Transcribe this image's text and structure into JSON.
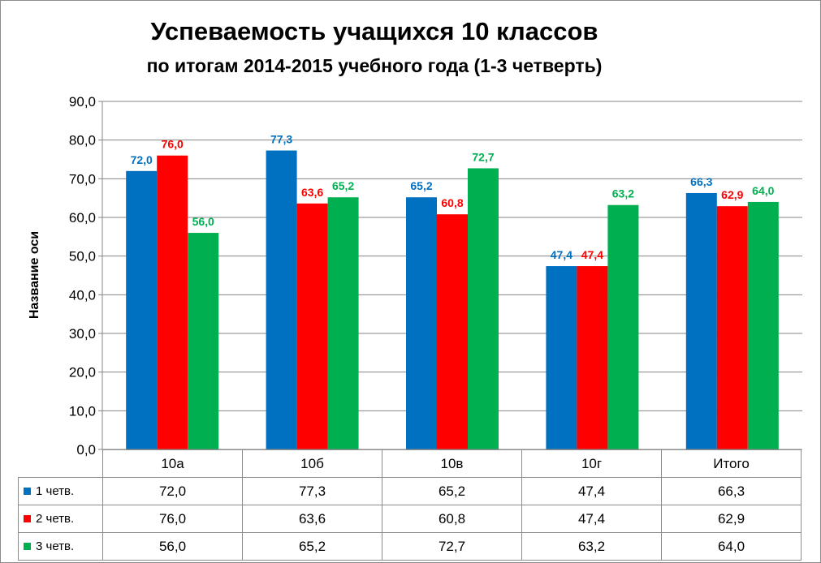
{
  "chart_data": {
    "type": "bar",
    "title": "Успеваемость учащихся 10 классов",
    "subtitle": "по итогам 2014-2015 учебного года (1-3 четверть)",
    "ylabel": "Название оси",
    "ylim": [
      0,
      90
    ],
    "yticks": [
      "0,0",
      "10,0",
      "20,0",
      "30,0",
      "40,0",
      "50,0",
      "60,0",
      "70,0",
      "80,0",
      "90,0"
    ],
    "grid": true,
    "legend": "data-table-below",
    "categories": [
      "10а",
      "10б",
      "10в",
      "10г",
      "Итого"
    ],
    "series": [
      {
        "name": "1 четв.",
        "color": "#0070C0",
        "values": [
          72.0,
          77.3,
          65.2,
          47.4,
          66.3
        ],
        "labels": [
          "72,0",
          "77,3",
          "65,2",
          "47,4",
          "66,3"
        ]
      },
      {
        "name": "2 четв.",
        "color": "#FF0000",
        "values": [
          76.0,
          63.6,
          60.8,
          47.4,
          62.9
        ],
        "labels": [
          "76,0",
          "63,6",
          "60,8",
          "47,4",
          "62,9"
        ]
      },
      {
        "name": "3 четв.",
        "color": "#00B050",
        "values": [
          56.0,
          65.2,
          72.7,
          63.2,
          64.0
        ],
        "labels": [
          "56,0",
          "65,2",
          "72,7",
          "63,2",
          "64,0"
        ]
      }
    ]
  }
}
